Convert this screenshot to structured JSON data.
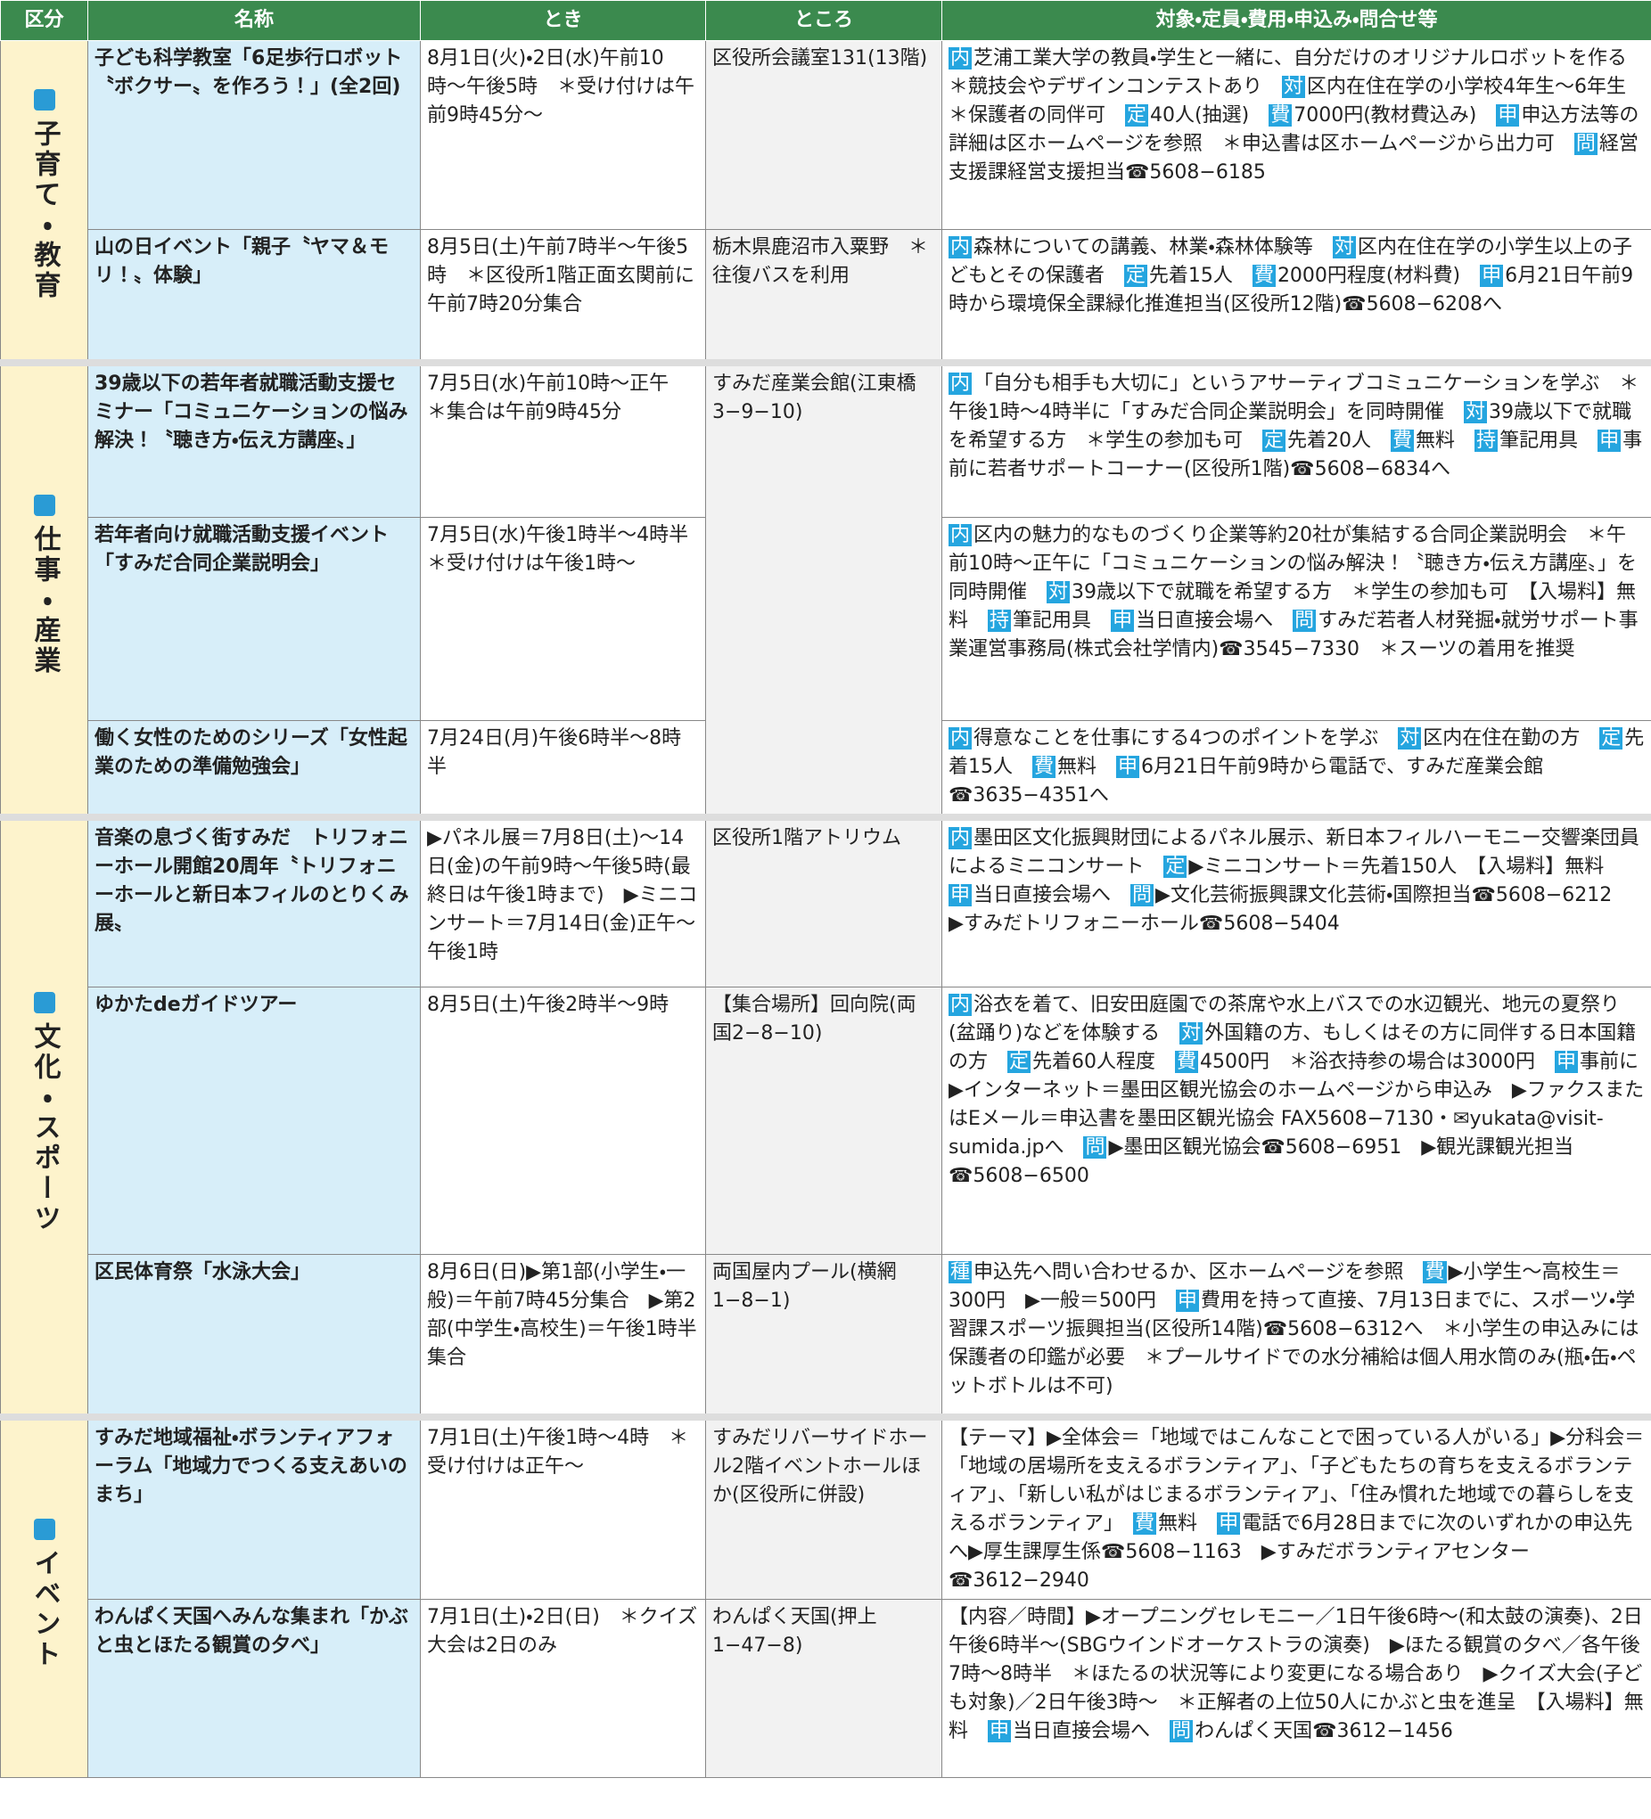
{
  "header": [
    "区分",
    "名称",
    "とき",
    "ところ",
    "対象・定員・費用・申込み・問合せ等"
  ],
  "groups": [
    {
      "category": "子育て・教育",
      "rows": [
        {
          "name": "子ども科学教室「6足歩行ロボット〝ボクサー〟を作ろう！」(全2回)",
          "when": "8月1日(火)・2日(水)午前10時〜午後5時　＊受け付けは午前9時45分〜",
          "where": "区役所会議室131(13階)",
          "details": [
            {
              "badge": "内"
            },
            "芝浦工業大学の教員・学生と一緒に、自分だけのオリジナルロボットを作る　＊競技会やデザインコンテストあり　",
            {
              "badge": "対"
            },
            "区内在住在学の小学校4年生〜6年生　＊保護者の同伴可　",
            {
              "badge": "定"
            },
            "40人(抽選)　",
            {
              "badge": "費"
            },
            "7000円(教材費込み)　",
            {
              "badge": "申"
            },
            "申込方法等の詳細は区ホームページを参照　＊申込書は区ホームページから出力可　",
            {
              "badge": "問"
            },
            "経営支援課経営支援担当☎5608−6185"
          ]
        },
        {
          "name": "山の日イベント「親子〝ヤマ＆モリ！〟体験」",
          "when": "8月5日(土)午前7時半〜午後5時　＊区役所1階正面玄関前に午前7時20分集合",
          "where": "栃木県鹿沼市入粟野　＊往復バスを利用",
          "details": [
            {
              "badge": "内"
            },
            "森林についての講義、林業・森林体験等　",
            {
              "badge": "対"
            },
            "区内在住在学の小学生以上の子どもとその保護者　",
            {
              "badge": "定"
            },
            "先着15人　",
            {
              "badge": "費"
            },
            "2000円程度(材料費)　",
            {
              "badge": "申"
            },
            "6月21日午前9時から環境保全課緑化推進担当(区役所12階)☎5608−6208へ"
          ]
        }
      ]
    },
    {
      "category": "仕事・産業",
      "rows": [
        {
          "name": "39歳以下の若年者就職活動支援セミナー「コミュニケーションの悩み解決！〝聴き方・伝え方講座〟」",
          "when": "7月5日(水)午前10時〜正午　＊集合は午前9時45分",
          "where": "すみだ産業会館(江東橋3−9−10)",
          "details": [
            {
              "badge": "内"
            },
            "「自分も相手も大切に」というアサーティブコミュニケーションを学ぶ　＊午後1時〜4時半に「すみだ合同企業説明会」を同時開催　",
            {
              "badge": "対"
            },
            "39歳以下で就職を希望する方　＊学生の参加も可　",
            {
              "badge": "定"
            },
            "先着20人　",
            {
              "badge": "費"
            },
            "無料　",
            {
              "badge": "持"
            },
            "筆記用具　",
            {
              "badge": "申"
            },
            "事前に若者サポートコーナー(区役所1階)☎5608−6834へ"
          ]
        },
        {
          "name": "若年者向け就職活動支援イベント「すみだ合同企業説明会」",
          "when": "7月5日(水)午後1時半〜4時半　＊受け付けは午後1時〜",
          "details": [
            {
              "badge": "内"
            },
            "区内の魅力的なものづくり企業等約20社が集結する合同企業説明会　＊午前10時〜正午に「コミュニケーションの悩み解決！〝聴き方・伝え方講座〟」を同時開催　",
            {
              "badge": "対"
            },
            "39歳以下で就職を希望する方　＊学生の参加も可　【入場料】無料　",
            {
              "badge": "持"
            },
            "筆記用具　",
            {
              "badge": "申"
            },
            "当日直接会場へ　",
            {
              "badge": "問"
            },
            "すみだ若者人材発掘・就労サポート事業運営事務局(株式会社学情内)☎3545−7330　＊スーツの着用を推奨"
          ]
        },
        {
          "name": "働く女性のためのシリーズ「女性起業のための準備勉強会」",
          "when": "7月24日(月)午後6時半〜8時半",
          "details": [
            {
              "badge": "内"
            },
            "得意なことを仕事にする4つのポイントを学ぶ　",
            {
              "badge": "対"
            },
            "区内在住在勤の方　",
            {
              "badge": "定"
            },
            "先着15人　",
            {
              "badge": "費"
            },
            "無料　",
            {
              "badge": "申"
            },
            "6月21日午前9時から電話で、すみだ産業会館☎3635−4351へ"
          ]
        }
      ]
    },
    {
      "category": "文化・スポーツ",
      "rows": [
        {
          "name": "音楽の息づく街すみだ　トリフォニーホール開館20周年〝トリフォニーホールと新日本フィルのとりくみ展〟",
          "when": "▶パネル展＝7月8日(土)〜14日(金)の午前9時〜午後5時(最終日は午後1時まで)　▶ミニコンサート＝7月14日(金)正午〜午後1時",
          "where": "区役所1階アトリウム",
          "details": [
            {
              "badge": "内"
            },
            "墨田区文化振興財団によるパネル展示、新日本フィルハーモニー交響楽団員によるミニコンサート　",
            {
              "badge": "定"
            },
            "▶ミニコンサート＝先着150人　【入場料】無料　",
            {
              "badge": "申"
            },
            "当日直接会場へ　",
            {
              "badge": "問"
            },
            "▶文化芸術振興課文化芸術・国際担当☎5608−6212　▶すみだトリフォニーホール☎5608−5404"
          ]
        },
        {
          "name": "ゆかたdeガイドツアー",
          "when": "8月5日(土)午後2時半〜9時",
          "where": "【集合場所】回向院(両国2−8−10)",
          "details": [
            {
              "badge": "内"
            },
            "浴衣を着て、旧安田庭園での茶席や水上バスでの水辺観光、地元の夏祭り(盆踊り)などを体験する　",
            {
              "badge": "対"
            },
            "外国籍の方、もしくはその方に同伴する日本国籍の方　",
            {
              "badge": "定"
            },
            "先着60人程度　",
            {
              "badge": "費"
            },
            "4500円　＊浴衣持参の場合は3000円　",
            {
              "badge": "申"
            },
            "事前に▶インターネット＝墨田区観光協会のホームページから申込み　▶ファクスまたはEメール＝申込書を墨田区観光協会 FAX5608−7130・✉yukata@visit-sumida.jpへ　",
            {
              "badge": "問"
            },
            "▶墨田区観光協会☎5608−6951　▶観光課観光担当☎5608−6500"
          ]
        },
        {
          "name": "区民体育祭「水泳大会」",
          "when": "8月6日(日)▶第1部(小学生・一般)＝午前7時45分集合　▶第2部(中学生・高校生)＝午後1時半集合",
          "where": "両国屋内プール(横網1−8−1)",
          "details": [
            {
              "badge": "種"
            },
            "申込先へ問い合わせるか、区ホームページを参照　",
            {
              "badge": "費"
            },
            "▶小学生〜高校生＝300円　▶一般＝500円　",
            {
              "badge": "申"
            },
            "費用を持って直接、7月13日までに、スポーツ・学習課スポーツ振興担当(区役所14階)☎5608−6312へ　＊小学生の申込みには保護者の印鑑が必要　＊プールサイドでの水分補給は個人用水筒のみ(瓶・缶・ペットボトルは不可)"
          ]
        }
      ]
    },
    {
      "category": "イベント",
      "rows": [
        {
          "name": "すみだ地域福祉・ボランティアフォーラム「地域力でつくる支えあいのまち」",
          "when": "7月1日(土)午後1時〜4時　＊受け付けは正午〜",
          "where": "すみだリバーサイドホール2階イベントホールほか(区役所に併設)",
          "details": [
            "【テーマ】▶全体会＝「地域ではこんなことで困っている人がいる」▶分科会＝「地域の居場所を支えるボランティア」、「子どもたちの育ちを支えるボランティア」、「新しい私がはじまるボランティア」、「住み慣れた地域での暮らしを支えるボランティア」　",
            {
              "badge": "費"
            },
            "無料　",
            {
              "badge": "申"
            },
            "電話で6月28日までに次のいずれかの申込先へ▶厚生課厚生係☎5608−1163　▶すみだボランティアセンター☎3612−2940"
          ]
        },
        {
          "name": "わんぱく天国へみんな集まれ「かぶと虫とほたる観賞の夕べ」",
          "when": "7月1日(土)・2日(日)　＊クイズ大会は2日のみ",
          "where": "わんぱく天国(押上1−47−8)",
          "details": [
            "【内容／時間】▶オープニングセレモニー／1日午後6時〜(和太鼓の演奏)、2日午後6時半〜(SBGウインドオーケストラの演奏)　▶ほたる観賞の夕べ／各午後7時〜8時半　＊ほたるの状況等により変更になる場合あり　▶クイズ大会(子ども対象)／2日午後3時〜　＊正解者の上位50人にかぶと虫を進呈　【入場料】無料　",
            {
              "badge": "申"
            },
            "当日直接会場へ　",
            {
              "badge": "問"
            },
            "わんぱく天国☎3612−1456"
          ]
        }
      ]
    }
  ]
}
